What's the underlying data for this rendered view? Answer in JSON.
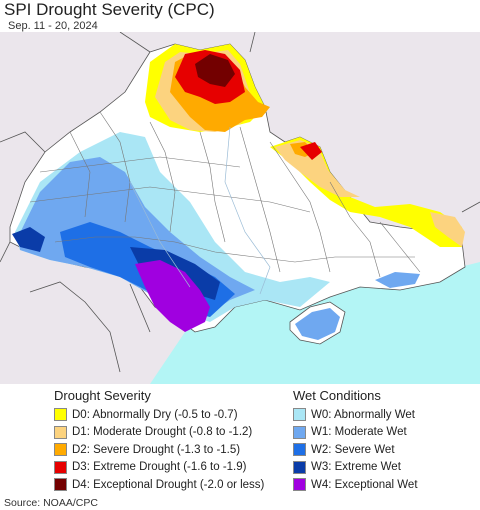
{
  "title": "SPI Drought Severity (CPC)",
  "date_range": "Sep. 11 - 20, 2024",
  "legend": {
    "drought": {
      "heading": "Drought Severity",
      "items": [
        {
          "label": "D0: Abnormally Dry (-0.5 to -0.7)",
          "color": "#ffff00"
        },
        {
          "label": "D1: Moderate Drought (-0.8 to -1.2)",
          "color": "#fcd37f"
        },
        {
          "label": "D2: Severe Drought (-1.3 to -1.5)",
          "color": "#ffaa00"
        },
        {
          "label": "D3: Extreme Drought (-1.6 to -1.9)",
          "color": "#e60000"
        },
        {
          "label": "D4: Exceptional Drought (-2.0 or less)",
          "color": "#730000"
        }
      ]
    },
    "wet": {
      "heading": "Wet Conditions",
      "items": [
        {
          "label": "W0: Abnormally Wet",
          "color": "#aae6f5"
        },
        {
          "label": "W1: Moderate Wet",
          "color": "#6fa8f0"
        },
        {
          "label": "W2: Severe Wet",
          "color": "#1e6fe6"
        },
        {
          "label": "W3: Extreme Wet",
          "color": "#0a3ca8"
        },
        {
          "label": "W4: Exceptional Wet",
          "color": "#a000e0"
        }
      ]
    }
  },
  "source": "Source: NOAA/CPC",
  "colors": {
    "sea": "#b3f5f5",
    "outside_land": "#ebe6ec",
    "land": "#ffffff",
    "borders": "#555555"
  }
}
